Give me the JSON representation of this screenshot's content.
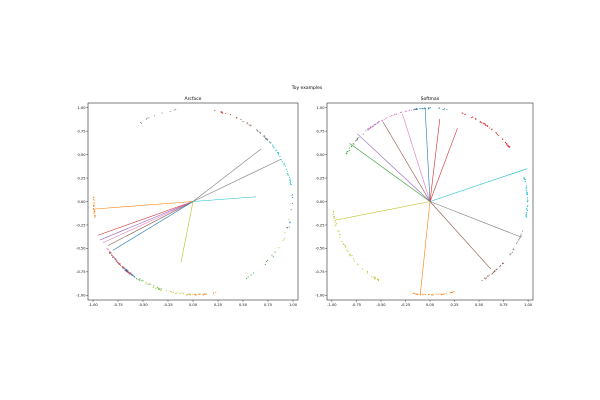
{
  "figure": {
    "title": "Toy examples"
  },
  "chart_data": [
    {
      "type": "scatter",
      "title": "Arcface",
      "xlim": [
        -1.05,
        1.05
      ],
      "ylim": [
        -1.05,
        1.05
      ],
      "xticks": [
        "-1.00",
        "-0.75",
        "-0.50",
        "-0.25",
        "0.00",
        "0.25",
        "0.50",
        "0.75",
        "1.00"
      ],
      "yticks": [
        "1.00",
        "0.75",
        "0.50",
        "0.25",
        "0.00",
        "-0.25",
        "-0.50",
        "-0.75",
        "-1.00"
      ],
      "tick_values": [
        -1,
        -0.75,
        -0.5,
        -0.25,
        0,
        0.25,
        0.5,
        0.75,
        1
      ],
      "grid": false,
      "legend": "none",
      "clusters": [
        {
          "color": "#d62728",
          "angles": [
            -140,
            -128
          ],
          "n": 26,
          "spread": 0.015
        },
        {
          "color": "#9467bd",
          "angles": [
            -138,
            -125
          ],
          "n": 20,
          "spread": 0.015
        },
        {
          "color": "#e377c2",
          "angles": [
            -150,
            -138
          ],
          "n": 20,
          "spread": 0.015
        },
        {
          "color": "#8c564b",
          "angles": [
            -148,
            -135
          ],
          "n": 16,
          "spread": 0.015
        },
        {
          "color": "#1f77b4",
          "angles": [
            -135,
            -125
          ],
          "n": 14,
          "spread": 0.015
        },
        {
          "color": "#ff7f0e",
          "angles": [
            -183,
            -170
          ],
          "n": 24,
          "spread": 0.012
        },
        {
          "color": "#2ca02c",
          "angles": [
            -128,
            -105
          ],
          "n": 16,
          "spread": 0.02
        },
        {
          "color": "#bcbd22",
          "angles": [
            -120,
            -85
          ],
          "n": 24,
          "spread": 0.02
        },
        {
          "color": "#17becf",
          "angles": [
            10,
            42
          ],
          "n": 40,
          "spread": 0.012
        },
        {
          "color": "#7f7f7f",
          "angles": [
            38,
            50
          ],
          "n": 20,
          "spread": 0.012
        },
        {
          "color": "#1f77b4",
          "angles": [
            -20,
            5
          ],
          "n": 10,
          "spread": 0.02
        },
        {
          "color": "#d62728",
          "angles": [
            60,
            78
          ],
          "n": 10,
          "spread": 0.015
        },
        {
          "color": "#8c564b",
          "angles": [
            50,
            62
          ],
          "n": 8,
          "spread": 0.015
        },
        {
          "color": "#ff7f0e",
          "angles": [
            -95,
            -75
          ],
          "n": 18,
          "spread": 0.01
        },
        {
          "color": "#2ca02c",
          "angles": [
            -60,
            -30
          ],
          "n": 10,
          "spread": 0.03
        },
        {
          "color": "#7f7f7f",
          "angles": [
            95,
            125
          ],
          "n": 10,
          "spread": 0.02
        },
        {
          "color": "#bcbd22",
          "angles": [
            -30,
            -10
          ],
          "n": 6,
          "spread": 0.03
        }
      ],
      "vectors": [
        {
          "color": "#ff7f0e",
          "x": -0.98,
          "y": -0.08
        },
        {
          "color": "#d62728",
          "x": -0.95,
          "y": -0.36
        },
        {
          "color": "#9467bd",
          "x": -0.93,
          "y": -0.41
        },
        {
          "color": "#e377c2",
          "x": -0.9,
          "y": -0.44
        },
        {
          "color": "#8c564b",
          "x": -0.85,
          "y": -0.47
        },
        {
          "color": "#1f77b4",
          "x": -0.8,
          "y": -0.52
        },
        {
          "color": "#7f7f7f",
          "x": 0.68,
          "y": 0.56
        },
        {
          "color": "#7f7f7f",
          "x": 0.88,
          "y": 0.45
        },
        {
          "color": "#17becf",
          "x": 0.63,
          "y": 0.05
        },
        {
          "color": "#bcbd22",
          "x": -0.12,
          "y": -0.65
        }
      ]
    },
    {
      "type": "scatter",
      "title": "Softmax",
      "xlim": [
        -1.05,
        1.05
      ],
      "ylim": [
        -1.05,
        1.05
      ],
      "xticks": [
        "-1.00",
        "-0.75",
        "-0.50",
        "-0.25",
        "0.00",
        "0.25",
        "0.50",
        "0.75",
        "1.00"
      ],
      "yticks": [
        "1.00",
        "0.75",
        "0.50",
        "0.25",
        "0.00",
        "-0.25",
        "-0.50",
        "-0.75",
        "-1.00"
      ],
      "tick_values": [
        -1,
        -0.75,
        -0.5,
        -0.25,
        0,
        0.25,
        0.5,
        0.75,
        1
      ],
      "grid": false,
      "legend": "none",
      "clusters": [
        {
          "color": "#e377c2",
          "angles": [
            95,
            130
          ],
          "n": 40,
          "spread": 0.012
        },
        {
          "color": "#1f77b4",
          "angles": [
            80,
            100
          ],
          "n": 22,
          "spread": 0.012
        },
        {
          "color": "#d62728",
          "angles": [
            35,
            75
          ],
          "n": 45,
          "spread": 0.012
        },
        {
          "color": "#9467bd",
          "angles": [
            120,
            140
          ],
          "n": 18,
          "spread": 0.012
        },
        {
          "color": "#2ca02c",
          "angles": [
            135,
            150
          ],
          "n": 14,
          "spread": 0.015
        },
        {
          "color": "#17becf",
          "angles": [
            -10,
            15
          ],
          "n": 40,
          "spread": 0.012
        },
        {
          "color": "#7f7f7f",
          "angles": [
            -35,
            -15
          ],
          "n": 18,
          "spread": 0.012
        },
        {
          "color": "#8c564b",
          "angles": [
            -60,
            -40
          ],
          "n": 22,
          "spread": 0.012
        },
        {
          "color": "#ff7f0e",
          "angles": [
            -100,
            -75
          ],
          "n": 34,
          "spread": 0.01
        },
        {
          "color": "#bcbd22",
          "angles": [
            -175,
            -120
          ],
          "n": 46,
          "spread": 0.02
        }
      ],
      "vectors": [
        {
          "color": "#2ca02c",
          "x": -0.82,
          "y": 0.62
        },
        {
          "color": "#9467bd",
          "x": -0.74,
          "y": 0.72
        },
        {
          "color": "#8c564b",
          "x": -0.48,
          "y": 0.85
        },
        {
          "color": "#e377c2",
          "x": -0.28,
          "y": 0.93
        },
        {
          "color": "#1f77b4",
          "x": -0.05,
          "y": 1.0
        },
        {
          "color": "#d62728",
          "x": 0.1,
          "y": 0.88
        },
        {
          "color": "#d62728",
          "x": 0.28,
          "y": 0.78
        },
        {
          "color": "#17becf",
          "x": 0.99,
          "y": 0.35
        },
        {
          "color": "#7f7f7f",
          "x": 0.93,
          "y": -0.38
        },
        {
          "color": "#8c564b",
          "x": 0.62,
          "y": -0.72
        },
        {
          "color": "#ff7f0e",
          "x": -0.1,
          "y": -1.0
        },
        {
          "color": "#bcbd22",
          "x": -0.97,
          "y": -0.2
        }
      ]
    }
  ]
}
